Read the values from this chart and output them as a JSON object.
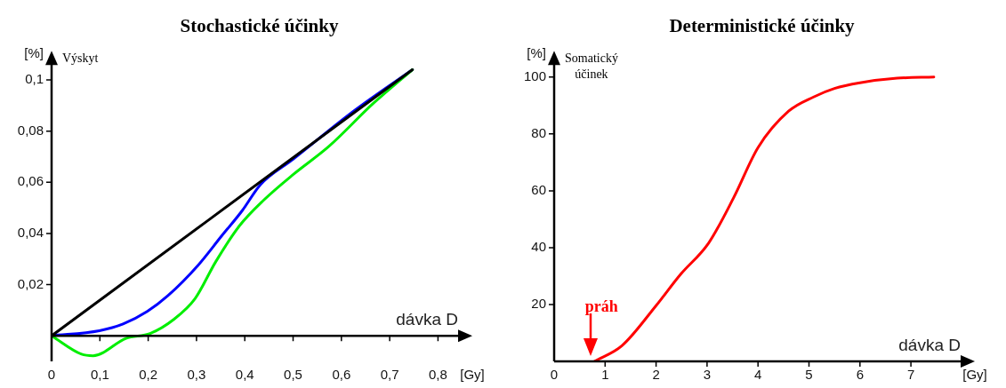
{
  "chart_data": [
    {
      "type": "line",
      "title": "Stochastické účinky",
      "xlabel": "dávka D",
      "ylabel": "Výskyt",
      "grid": false,
      "legend": false,
      "marker": "none",
      "line_style": "solid",
      "xlim": [
        0,
        0.86
      ],
      "ylim": [
        -0.01,
        0.11
      ],
      "xticks": [
        0,
        {
          "value": 0.1,
          "label": "0,1"
        },
        {
          "value": 0.2,
          "label": "0,2"
        },
        {
          "value": 0.3,
          "label": "0,3"
        },
        {
          "value": 0.4,
          "label": "0,4"
        },
        {
          "value": 0.5,
          "label": "0,5"
        },
        {
          "value": 0.6,
          "label": "0,6"
        },
        {
          "value": 0.7,
          "label": "0,7"
        },
        {
          "value": 0.8,
          "label": "0,8"
        },
        {
          "value": 0.86,
          "label": "[Gy]"
        }
      ],
      "yticks": [
        {
          "value": 0.02,
          "label": "0,02"
        },
        {
          "value": 0.04,
          "label": "0,04"
        },
        {
          "value": 0.06,
          "label": "0,06"
        },
        {
          "value": 0.08,
          "label": "0,08"
        },
        {
          "value": 0.1,
          "label": "0,1"
        },
        {
          "value": 0.11,
          "label": "[%]"
        }
      ],
      "series": [
        {
          "color": "#000000",
          "x": [
            0,
            0.747
          ],
          "values": [
            0,
            0.104
          ]
        },
        {
          "color": "#00ee00",
          "x": [
            0,
            0.062,
            0.086,
            0.154,
            0.204,
            0.253,
            0.297,
            0.34,
            0.389,
            0.439,
            0.5,
            0.574,
            0.667,
            0.747
          ],
          "values": [
            0,
            -0.0072,
            -0.0078,
            -0.001,
            0.0009,
            0.0064,
            0.0145,
            0.029,
            0.043,
            0.053,
            0.063,
            0.074,
            0.091,
            0.104
          ]
        },
        {
          "color": "#0000ff",
          "x": [
            0,
            0.099,
            0.148,
            0.198,
            0.241,
            0.303,
            0.352,
            0.395,
            0.432,
            0.5,
            0.624,
            0.747
          ],
          "values": [
            0,
            0.002,
            0.0046,
            0.0095,
            0.0157,
            0.0275,
            0.039,
            0.049,
            0.059,
            0.069,
            0.0876,
            0.104
          ]
        }
      ]
    },
    {
      "type": "line",
      "title": "Deterministické účinky",
      "xlabel": "dávka D",
      "ylabel": "Somatický účinek",
      "grid": false,
      "legend": false,
      "marker": "none",
      "line_style": "solid",
      "xlim": [
        0,
        8.15
      ],
      "ylim": [
        0,
        108
      ],
      "xticks": [
        0,
        1,
        2,
        3,
        4,
        5,
        6,
        7,
        {
          "value": 8.15,
          "label": "[Gy]"
        }
      ],
      "yticks": [
        20,
        40,
        60,
        80,
        100,
        {
          "value": 108,
          "label": "[%]"
        }
      ],
      "annotations": [
        {
          "text": "práh",
          "x": 0.79,
          "y": 0
        }
      ],
      "series": [
        {
          "color": "#ff0000",
          "x": [
            0.79,
            1.33,
            2.0,
            2.48,
            3.03,
            3.52,
            4.0,
            4.6,
            5.09,
            5.5,
            6.0,
            6.73,
            7.45
          ],
          "values": [
            0,
            5.5,
            19.6,
            30.6,
            41.6,
            57.5,
            75.2,
            88,
            93,
            96,
            98,
            99.6,
            100
          ]
        }
      ]
    }
  ]
}
